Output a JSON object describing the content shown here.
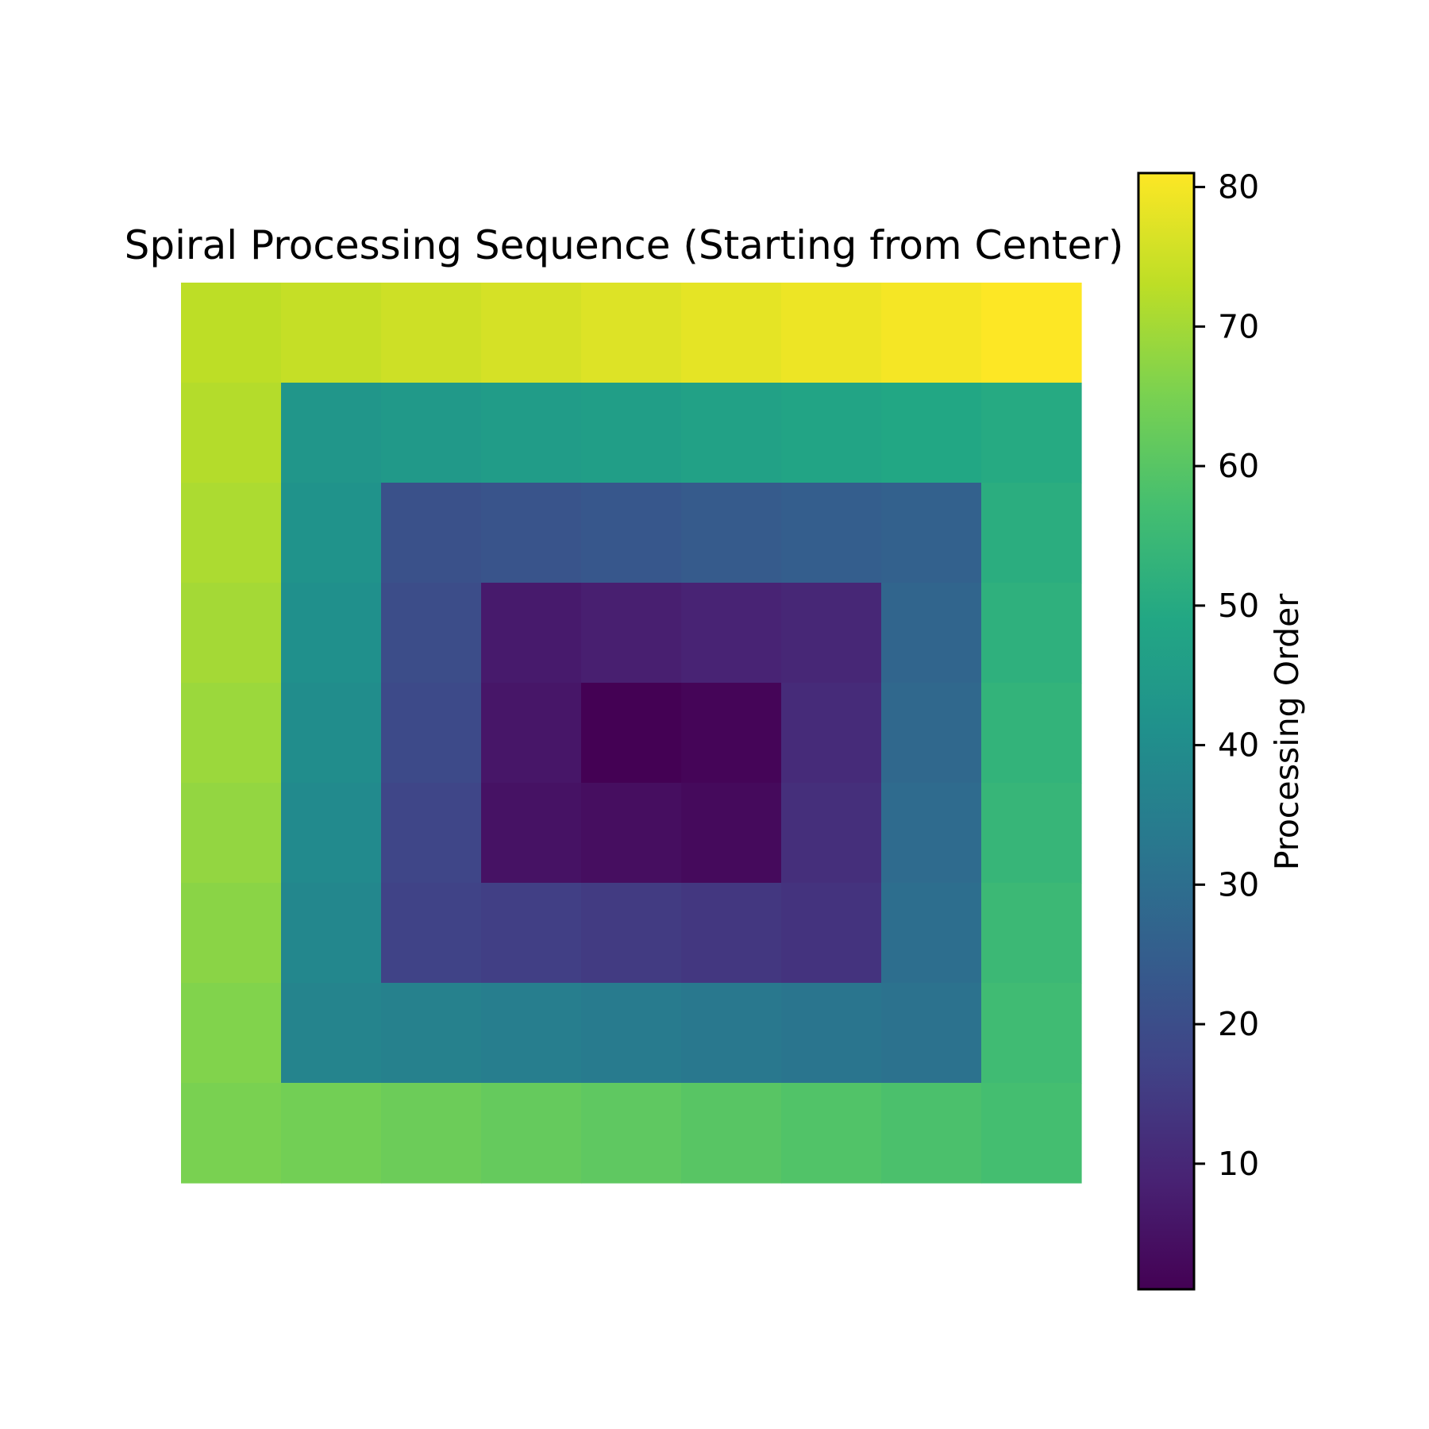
{
  "chart_data": {
    "type": "heatmap",
    "title": "Spiral Processing Sequence (Starting from Center)",
    "colormap": "viridis",
    "value_range": [
      1,
      81
    ],
    "grid": [
      [
        73,
        74,
        75,
        76,
        77,
        78,
        79,
        80,
        81
      ],
      [
        72,
        43,
        44,
        45,
        46,
        47,
        48,
        49,
        50
      ],
      [
        71,
        42,
        21,
        22,
        23,
        24,
        25,
        26,
        51
      ],
      [
        70,
        41,
        20,
        7,
        8,
        9,
        10,
        27,
        52
      ],
      [
        69,
        40,
        19,
        6,
        1,
        2,
        11,
        28,
        53
      ],
      [
        68,
        39,
        18,
        5,
        4,
        3,
        12,
        29,
        54
      ],
      [
        67,
        38,
        17,
        16,
        15,
        14,
        13,
        30,
        55
      ],
      [
        66,
        37,
        36,
        35,
        34,
        33,
        32,
        31,
        56
      ],
      [
        65,
        64,
        63,
        62,
        61,
        60,
        59,
        58,
        57
      ]
    ],
    "colorbar": {
      "label": "Processing Order",
      "ticks": [
        10,
        20,
        30,
        40,
        50,
        60,
        70,
        80
      ]
    }
  }
}
